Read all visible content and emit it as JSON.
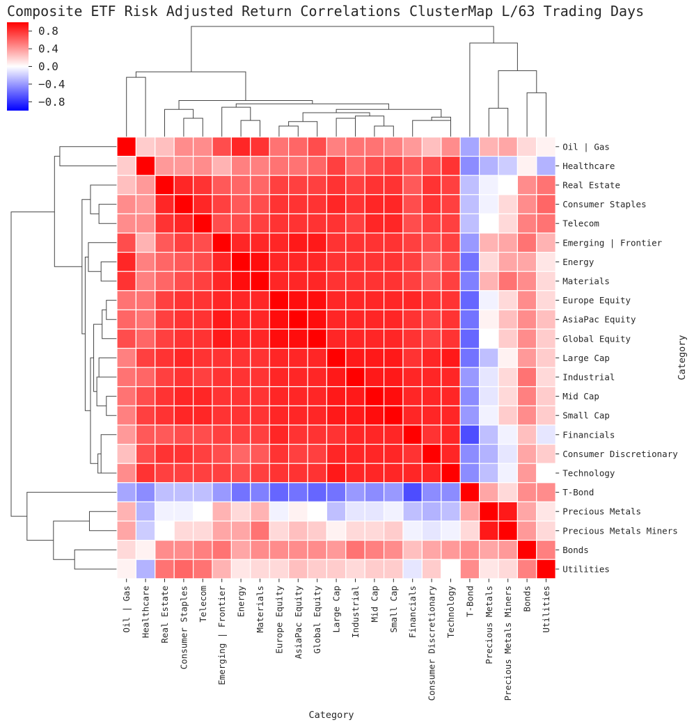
{
  "title": "Composite ETF Risk Adjusted Return Correlations ClusterMap L/63 Trading Days",
  "colors": {
    "negative": "#0000ff",
    "zero": "#ffffff",
    "positive": "#ff0000",
    "dendrogram": "#444444",
    "grid": "#ffffff"
  },
  "chart_data": {
    "type": "heatmap",
    "title": "Composite ETF Risk Adjusted Return Correlations ClusterMap L/63 Trading Days",
    "xlabel": "Category",
    "ylabel": "Category",
    "colormap": "bwr",
    "vmin": -1.0,
    "vmax": 1.0,
    "colorbar_ticks": [
      "0.8",
      "0.4",
      "0.0",
      "−0.4",
      "−0.8"
    ],
    "colorbar_tick_values": [
      0.8,
      0.4,
      0.0,
      -0.4,
      -0.8
    ],
    "labels": [
      "Oil | Gas",
      "Healthcare",
      "Real Estate",
      "Consumer Staples",
      "Telecom",
      "Emerging | Frontier",
      "Energy",
      "Materials",
      "Europe Equity",
      "AsiaPac Equity",
      "Global Equity",
      "Large Cap",
      "Industrial",
      "Mid Cap",
      "Small Cap",
      "Financials",
      "Consumer Discretionary",
      "Technology",
      "T-Bond",
      "Precious Metals",
      "Precious Metals Miners",
      "Bonds",
      "Utilities"
    ],
    "matrix": [
      [
        1.0,
        0.2,
        0.25,
        0.45,
        0.45,
        0.7,
        0.85,
        0.8,
        0.55,
        0.6,
        0.7,
        0.5,
        0.55,
        0.55,
        0.5,
        0.4,
        0.25,
        0.45,
        -0.35,
        0.3,
        0.35,
        0.15,
        0.05
      ],
      [
        0.2,
        1.0,
        0.4,
        0.4,
        0.45,
        0.3,
        0.5,
        0.5,
        0.55,
        0.55,
        0.6,
        0.75,
        0.6,
        0.7,
        0.75,
        0.65,
        0.7,
        0.8,
        -0.45,
        -0.3,
        -0.2,
        0.05,
        -0.3
      ],
      [
        0.25,
        0.4,
        1.0,
        0.85,
        0.8,
        0.65,
        0.6,
        0.6,
        0.75,
        0.75,
        0.75,
        0.8,
        0.75,
        0.8,
        0.8,
        0.65,
        0.8,
        0.75,
        -0.25,
        -0.05,
        0.0,
        0.45,
        0.55
      ],
      [
        0.45,
        0.4,
        0.85,
        1.0,
        0.85,
        0.75,
        0.65,
        0.7,
        0.8,
        0.8,
        0.8,
        0.85,
        0.8,
        0.85,
        0.85,
        0.7,
        0.8,
        0.75,
        -0.25,
        -0.05,
        0.15,
        0.45,
        0.6
      ],
      [
        0.45,
        0.45,
        0.8,
        0.85,
        1.0,
        0.7,
        0.7,
        0.75,
        0.8,
        0.8,
        0.8,
        0.8,
        0.75,
        0.85,
        0.85,
        0.7,
        0.75,
        0.75,
        -0.25,
        0.0,
        0.15,
        0.5,
        0.55
      ],
      [
        0.7,
        0.3,
        0.65,
        0.75,
        0.7,
        1.0,
        0.85,
        0.85,
        0.85,
        0.9,
        0.9,
        0.8,
        0.8,
        0.8,
        0.8,
        0.75,
        0.7,
        0.75,
        -0.4,
        0.3,
        0.35,
        0.55,
        0.3
      ],
      [
        0.85,
        0.5,
        0.6,
        0.65,
        0.7,
        0.85,
        1.0,
        0.95,
        0.85,
        0.85,
        0.85,
        0.8,
        0.8,
        0.8,
        0.8,
        0.75,
        0.6,
        0.7,
        -0.55,
        0.15,
        0.35,
        0.35,
        0.1
      ],
      [
        0.8,
        0.5,
        0.6,
        0.7,
        0.75,
        0.85,
        0.95,
        1.0,
        0.85,
        0.85,
        0.85,
        0.8,
        0.8,
        0.8,
        0.8,
        0.75,
        0.65,
        0.75,
        -0.5,
        0.3,
        0.55,
        0.45,
        0.15
      ],
      [
        0.55,
        0.55,
        0.75,
        0.8,
        0.8,
        0.85,
        0.85,
        0.85,
        1.0,
        0.95,
        0.95,
        0.85,
        0.85,
        0.85,
        0.85,
        0.85,
        0.8,
        0.8,
        -0.6,
        -0.05,
        0.15,
        0.45,
        0.15
      ],
      [
        0.6,
        0.55,
        0.75,
        0.8,
        0.8,
        0.9,
        0.85,
        0.85,
        0.95,
        1.0,
        0.95,
        0.85,
        0.85,
        0.85,
        0.85,
        0.8,
        0.75,
        0.8,
        -0.55,
        0.05,
        0.25,
        0.45,
        0.25
      ],
      [
        0.7,
        0.6,
        0.75,
        0.8,
        0.8,
        0.9,
        0.85,
        0.85,
        0.95,
        0.95,
        1.0,
        0.85,
        0.85,
        0.85,
        0.85,
        0.8,
        0.75,
        0.8,
        -0.6,
        0.0,
        0.2,
        0.45,
        0.2
      ],
      [
        0.5,
        0.75,
        0.8,
        0.85,
        0.8,
        0.8,
        0.8,
        0.8,
        0.85,
        0.85,
        0.85,
        1.0,
        0.9,
        0.9,
        0.9,
        0.8,
        0.85,
        0.9,
        -0.55,
        -0.25,
        0.05,
        0.4,
        0.2
      ],
      [
        0.55,
        0.6,
        0.75,
        0.8,
        0.75,
        0.8,
        0.8,
        0.8,
        0.85,
        0.85,
        0.85,
        0.9,
        1.0,
        0.9,
        0.9,
        0.85,
        0.85,
        0.85,
        -0.4,
        -0.1,
        0.15,
        0.55,
        0.15
      ],
      [
        0.55,
        0.7,
        0.8,
        0.85,
        0.85,
        0.8,
        0.8,
        0.8,
        0.85,
        0.85,
        0.85,
        0.9,
        0.9,
        1.0,
        0.95,
        0.85,
        0.85,
        0.85,
        -0.45,
        -0.1,
        0.15,
        0.5,
        0.2
      ],
      [
        0.5,
        0.75,
        0.8,
        0.85,
        0.85,
        0.8,
        0.8,
        0.8,
        0.85,
        0.85,
        0.85,
        0.9,
        0.9,
        0.95,
        1.0,
        0.85,
        0.85,
        0.85,
        -0.4,
        -0.05,
        0.2,
        0.45,
        0.2
      ],
      [
        0.4,
        0.65,
        0.65,
        0.7,
        0.7,
        0.75,
        0.75,
        0.75,
        0.85,
        0.8,
        0.8,
        0.8,
        0.85,
        0.85,
        0.85,
        1.0,
        0.8,
        0.85,
        -0.7,
        -0.25,
        -0.05,
        0.25,
        -0.1
      ],
      [
        0.25,
        0.7,
        0.8,
        0.8,
        0.75,
        0.7,
        0.6,
        0.65,
        0.8,
        0.75,
        0.75,
        0.85,
        0.85,
        0.85,
        0.85,
        0.8,
        1.0,
        0.85,
        -0.45,
        -0.3,
        -0.1,
        0.35,
        0.2
      ],
      [
        0.45,
        0.8,
        0.75,
        0.75,
        0.75,
        0.75,
        0.7,
        0.75,
        0.8,
        0.8,
        0.8,
        0.9,
        0.85,
        0.85,
        0.85,
        0.85,
        0.85,
        1.0,
        -0.45,
        -0.25,
        -0.05,
        0.4,
        0.0
      ],
      [
        -0.35,
        -0.45,
        -0.25,
        -0.25,
        -0.25,
        -0.4,
        -0.55,
        -0.5,
        -0.6,
        -0.55,
        -0.6,
        -0.55,
        -0.4,
        -0.45,
        -0.4,
        -0.7,
        -0.45,
        -0.45,
        1.0,
        0.35,
        0.15,
        0.45,
        0.45
      ],
      [
        0.3,
        -0.3,
        -0.05,
        -0.05,
        0.0,
        0.3,
        0.15,
        0.3,
        -0.05,
        0.05,
        0.0,
        -0.25,
        -0.1,
        -0.1,
        -0.05,
        -0.25,
        -0.3,
        -0.25,
        0.35,
        1.0,
        0.9,
        0.35,
        0.1
      ],
      [
        0.35,
        -0.2,
        0.0,
        0.15,
        0.15,
        0.35,
        0.35,
        0.55,
        0.15,
        0.25,
        0.2,
        0.05,
        0.15,
        0.15,
        0.2,
        -0.05,
        -0.1,
        -0.05,
        0.15,
        0.9,
        1.0,
        0.4,
        0.15
      ],
      [
        0.15,
        0.05,
        0.45,
        0.45,
        0.5,
        0.55,
        0.35,
        0.45,
        0.45,
        0.45,
        0.45,
        0.4,
        0.55,
        0.5,
        0.45,
        0.25,
        0.35,
        0.4,
        0.45,
        0.35,
        0.4,
        1.0,
        0.5
      ],
      [
        0.05,
        -0.3,
        0.55,
        0.6,
        0.55,
        0.3,
        0.1,
        0.15,
        0.15,
        0.25,
        0.2,
        0.2,
        0.15,
        0.2,
        0.2,
        -0.1,
        0.2,
        0.0,
        0.45,
        0.1,
        0.15,
        0.5,
        1.0
      ]
    ]
  }
}
